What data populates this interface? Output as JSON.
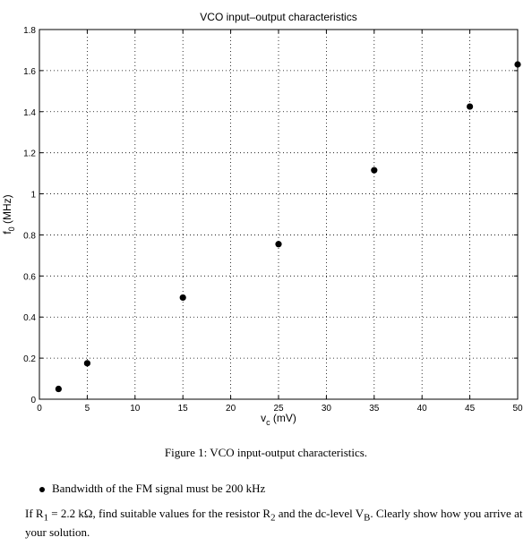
{
  "chart_data": {
    "type": "scatter",
    "title": "VCO input–output characteristics",
    "xlabel": "v",
    "xlabel_sub": "c",
    "xlabel_unit": " (mV)",
    "ylabel": "f",
    "ylabel_sub": "0",
    "ylabel_unit": " (MHz)",
    "xlim": [
      0,
      50
    ],
    "ylim": [
      0,
      1.8
    ],
    "xticks": [
      0,
      5,
      10,
      15,
      20,
      25,
      30,
      35,
      40,
      45,
      50
    ],
    "xtick_labels": [
      "0",
      "5",
      "10",
      "15",
      "20",
      "25",
      "30",
      "35",
      "40",
      "45",
      "50"
    ],
    "yticks": [
      0,
      0.2,
      0.4,
      0.6,
      0.8,
      1.0,
      1.2,
      1.4,
      1.6,
      1.8
    ],
    "ytick_labels": [
      "0",
      "0.2",
      "0.4",
      "0.6",
      "0.8",
      "1",
      "1.2",
      "1.4",
      "1.6",
      "1.8"
    ],
    "grid": true,
    "series": [
      {
        "x": [
          2,
          5,
          15,
          25,
          35,
          45,
          50
        ],
        "y": [
          0.05,
          0.175,
          0.495,
          0.755,
          1.115,
          1.425,
          1.63
        ]
      }
    ]
  },
  "text": {
    "caption": "Figure 1: VCO input-output characteristics.",
    "bullet": "Bandwidth of the FM signal must be 200 kHz",
    "question_part1": "If R",
    "question_sub1": "1",
    "question_part2": " = 2.2 kΩ, find suitable values for the resistor R",
    "question_sub2": "2",
    "question_part3": " and the dc-level V",
    "question_sub3": "B",
    "question_part4": ". Clearly show how you arrive at your solution."
  }
}
